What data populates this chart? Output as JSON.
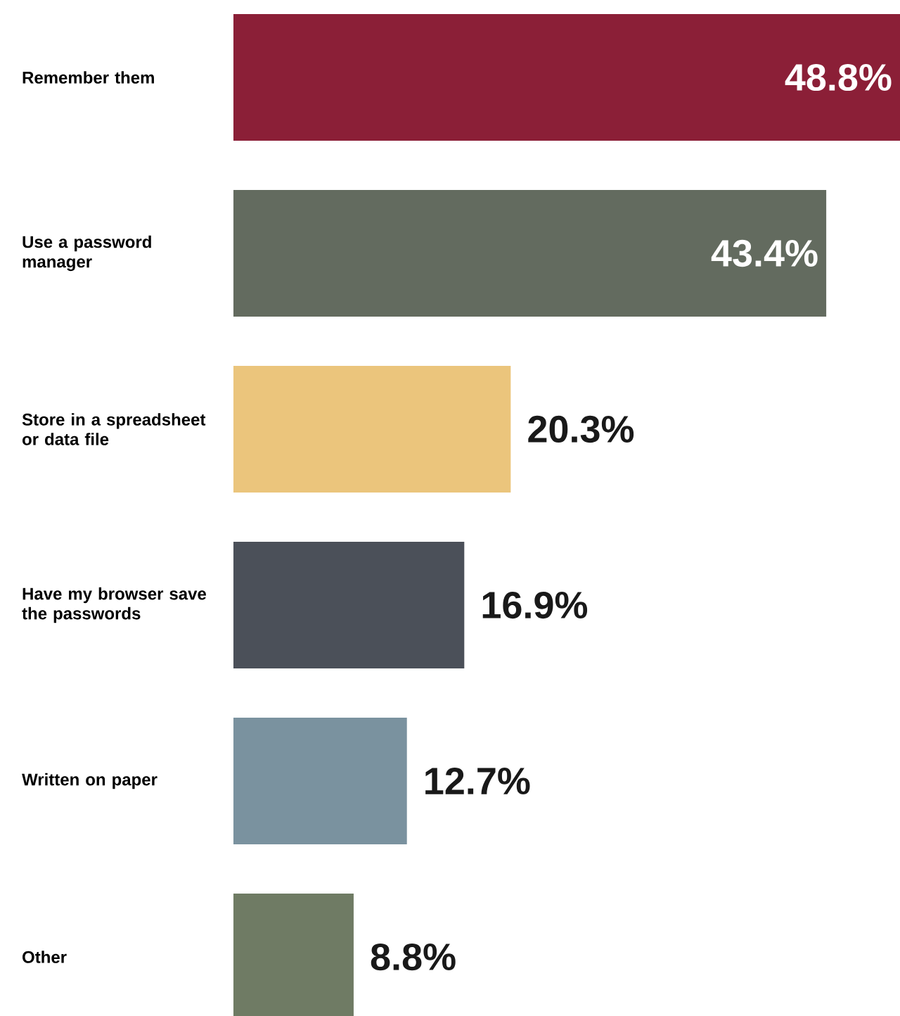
{
  "chart_data": {
    "type": "bar",
    "orientation": "horizontal",
    "categories": [
      "Remember them",
      "Use a password manager",
      "Store in a spreadsheet or data file",
      "Have my browser save the passwords",
      "Written on paper",
      "Other"
    ],
    "values": [
      48.8,
      43.4,
      20.3,
      16.9,
      12.7,
      8.8
    ],
    "value_labels": [
      "48.8%",
      "43.4%",
      "20.3%",
      "16.9%",
      "12.7%",
      "8.8%"
    ],
    "colors": [
      "#8b1f37",
      "#636b5f",
      "#ebc57c",
      "#4b5059",
      "#7a929f",
      "#6f7b64"
    ]
  }
}
